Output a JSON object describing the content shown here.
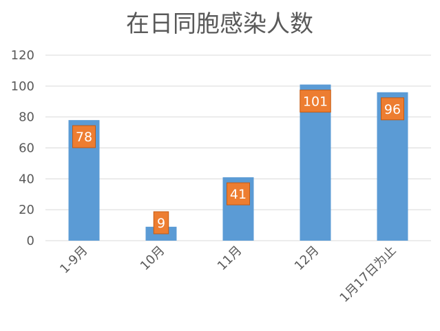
{
  "chart_data": {
    "type": "bar",
    "title": "在日同胞感染人数",
    "categories": [
      "1-9月",
      "10月",
      "11月",
      "12月",
      "1月17日为止"
    ],
    "values": [
      78,
      9,
      41,
      101,
      96
    ],
    "ylim": [
      0,
      120
    ],
    "yticks": [
      0,
      20,
      40,
      60,
      80,
      100,
      120
    ],
    "grid": true,
    "legend": "none",
    "colors": {
      "bar": "#5b9bd5",
      "label_box": "#ed7d31",
      "label_border": "#c55a11",
      "label_text": "#ffffff"
    }
  }
}
